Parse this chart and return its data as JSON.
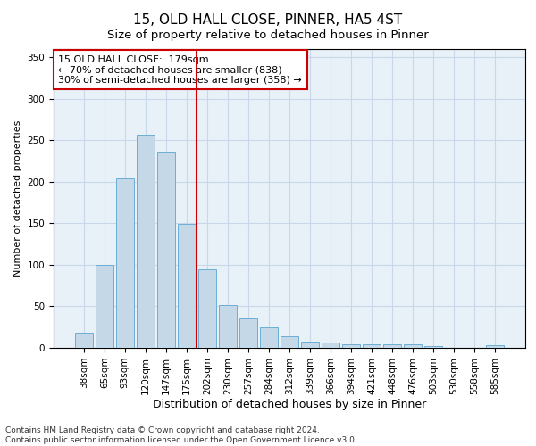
{
  "title1": "15, OLD HALL CLOSE, PINNER, HA5 4ST",
  "title2": "Size of property relative to detached houses in Pinner",
  "xlabel": "Distribution of detached houses by size in Pinner",
  "ylabel": "Number of detached properties",
  "bar_labels": [
    "38sqm",
    "65sqm",
    "93sqm",
    "120sqm",
    "147sqm",
    "175sqm",
    "202sqm",
    "230sqm",
    "257sqm",
    "284sqm",
    "312sqm",
    "339sqm",
    "366sqm",
    "394sqm",
    "421sqm",
    "448sqm",
    "476sqm",
    "503sqm",
    "530sqm",
    "558sqm",
    "585sqm"
  ],
  "bar_values": [
    18,
    100,
    204,
    257,
    236,
    149,
    95,
    52,
    35,
    25,
    14,
    8,
    6,
    4,
    4,
    4,
    4,
    2,
    0,
    0,
    3
  ],
  "bar_color": "#c5d8e8",
  "bar_edge_color": "#6baed6",
  "vline_color": "#cc0000",
  "annotation_text": "15 OLD HALL CLOSE:  179sqm\n← 70% of detached houses are smaller (838)\n30% of semi-detached houses are larger (358) →",
  "annotation_box_color": "#ffffff",
  "annotation_box_edge": "#cc0000",
  "ylim": [
    0,
    360
  ],
  "yticks": [
    0,
    50,
    100,
    150,
    200,
    250,
    300,
    350
  ],
  "grid_color": "#c8d8e8",
  "bg_color": "#e8f0f8",
  "footer1": "Contains HM Land Registry data © Crown copyright and database right 2024.",
  "footer2": "Contains public sector information licensed under the Open Government Licence v3.0.",
  "title1_fontsize": 11,
  "title2_fontsize": 9.5,
  "xlabel_fontsize": 9,
  "ylabel_fontsize": 8,
  "tick_fontsize": 7.5,
  "annotation_fontsize": 8,
  "footer_fontsize": 6.5,
  "vline_bar_index": 5
}
